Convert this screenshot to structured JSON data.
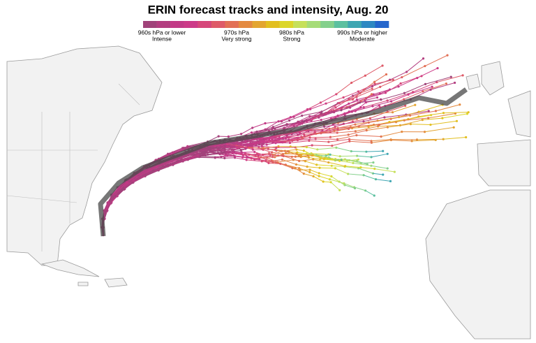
{
  "header": {
    "title": "ERIN forecast tracks and intensity, Aug. 20"
  },
  "legend": {
    "colors": [
      "#a0437a",
      "#b33e80",
      "#c23a86",
      "#cc3a88",
      "#d6477a",
      "#de5a68",
      "#e27055",
      "#e48a40",
      "#e3a530",
      "#e2bf20",
      "#dcd62a",
      "#c6e05a",
      "#a6dc78",
      "#84d08c",
      "#5cc0a0",
      "#3ea6b2",
      "#2e88c2",
      "#2566cc"
    ],
    "labels": [
      {
        "pressure": "960s hPa or lower",
        "intensity": "Intense"
      },
      {
        "pressure": "970s hPa",
        "intensity": "Very strong"
      },
      {
        "pressure": "980s hPa",
        "intensity": "Strong"
      },
      {
        "pressure": "990s hPa or higher",
        "intensity": "Moderate"
      }
    ]
  }
}
